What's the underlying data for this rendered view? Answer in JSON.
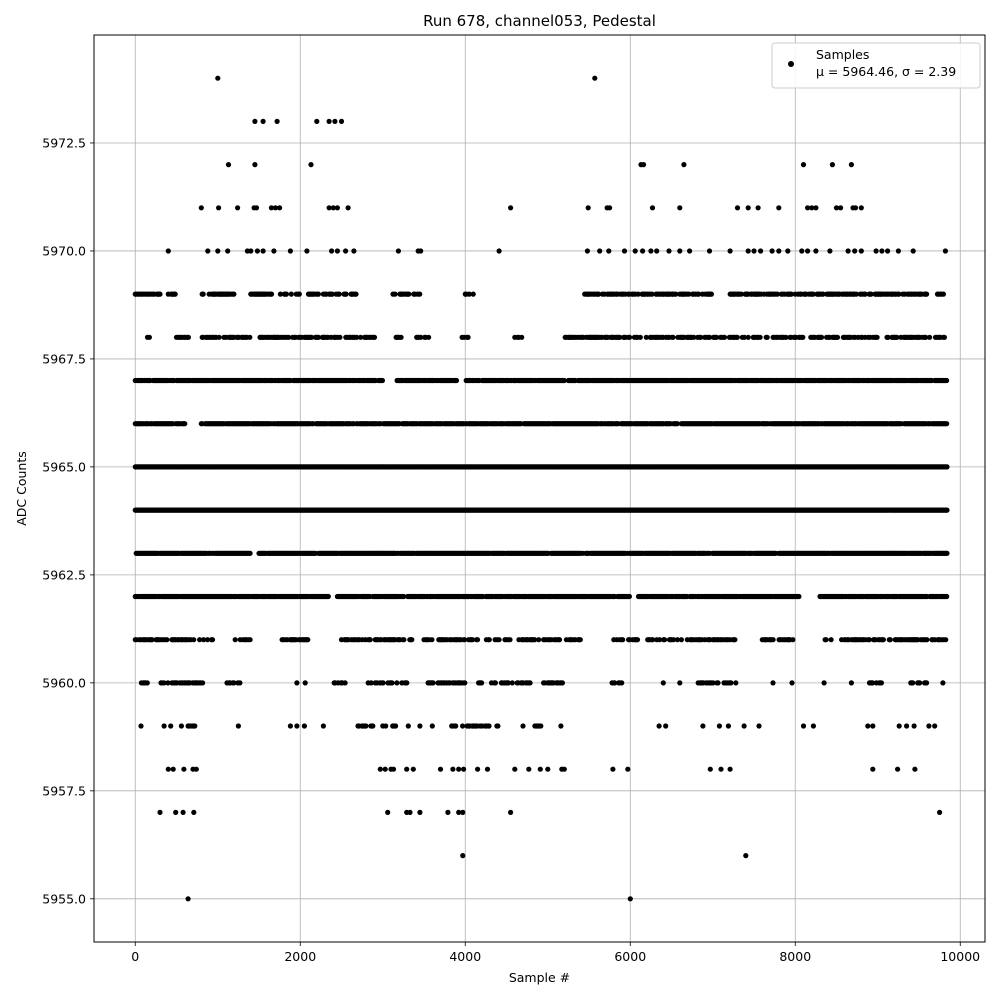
{
  "chart_data": {
    "type": "scatter",
    "title": "Run 678, channel053, Pedestal",
    "xlabel": "Sample #",
    "ylabel": "ADC Counts",
    "xlim": [
      -500,
      10300
    ],
    "ylim": [
      5954.0,
      5975.0
    ],
    "xticks": [
      0,
      2000,
      4000,
      6000,
      8000,
      10000
    ],
    "xtick_labels": [
      "0",
      "2000",
      "4000",
      "6000",
      "8000",
      "10000"
    ],
    "yticks": [
      5955.0,
      5957.5,
      5960.0,
      5962.5,
      5965.0,
      5967.5,
      5970.0,
      5972.5
    ],
    "ytick_labels": [
      "5955.0",
      "5957.5",
      "5960.0",
      "5962.5",
      "5965.0",
      "5967.5",
      "5970.0",
      "5972.5"
    ],
    "grid": true,
    "legend_position": "top-right",
    "marker_color": "#000000",
    "series": [
      {
        "name": "Samples",
        "stats_label": "μ = 5964.46, σ = 2.39",
        "points": [
          [
            1000,
            5974
          ],
          [
            5570,
            5974
          ],
          [
            1450,
            5973
          ],
          [
            1550,
            5973
          ],
          [
            1720,
            5973
          ],
          [
            2200,
            5973
          ],
          [
            2350,
            5973
          ],
          [
            2420,
            5973
          ],
          [
            2500,
            5973
          ],
          [
            1130,
            5972
          ],
          [
            1450,
            5972
          ],
          [
            2130,
            5972
          ],
          [
            6130,
            5972
          ],
          [
            6160,
            5972
          ],
          [
            6650,
            5972
          ],
          [
            8100,
            5972
          ],
          [
            8450,
            5972
          ],
          [
            8680,
            5972
          ],
          [
            800,
            5971
          ],
          [
            1010,
            5971
          ],
          [
            1240,
            5971
          ],
          [
            1440,
            5971
          ],
          [
            1470,
            5971
          ],
          [
            1650,
            5971
          ],
          [
            1700,
            5971
          ],
          [
            1750,
            5971
          ],
          [
            2350,
            5971
          ],
          [
            2400,
            5971
          ],
          [
            2450,
            5971
          ],
          [
            2580,
            5971
          ],
          [
            4550,
            5971
          ],
          [
            5490,
            5971
          ],
          [
            5720,
            5971
          ],
          [
            5750,
            5971
          ],
          [
            6270,
            5971
          ],
          [
            6600,
            5971
          ],
          [
            7300,
            5971
          ],
          [
            7430,
            5971
          ],
          [
            7550,
            5971
          ],
          [
            7800,
            5971
          ],
          [
            8150,
            5971
          ],
          [
            8200,
            5971
          ],
          [
            8250,
            5971
          ],
          [
            8500,
            5971
          ],
          [
            8550,
            5971
          ],
          [
            8700,
            5971
          ],
          [
            8730,
            5971
          ],
          [
            8800,
            5971
          ],
          [
            400,
            5970
          ],
          [
            880,
            5970
          ],
          [
            1000,
            5970
          ],
          [
            1120,
            5970
          ],
          [
            1360,
            5970
          ],
          [
            1400,
            5970
          ],
          [
            1480,
            5970
          ],
          [
            1550,
            5970
          ],
          [
            1680,
            5970
          ],
          [
            1880,
            5970
          ],
          [
            2080,
            5970
          ],
          [
            2380,
            5970
          ],
          [
            2450,
            5970
          ],
          [
            2550,
            5970
          ],
          [
            2650,
            5970
          ],
          [
            3190,
            5970
          ],
          [
            3430,
            5970
          ],
          [
            3460,
            5970
          ],
          [
            4410,
            5970
          ],
          [
            5480,
            5970
          ],
          [
            5630,
            5970
          ],
          [
            5740,
            5970
          ],
          [
            5930,
            5970
          ],
          [
            6060,
            5970
          ],
          [
            6150,
            5970
          ],
          [
            6250,
            5970
          ],
          [
            6320,
            5970
          ],
          [
            6470,
            5970
          ],
          [
            6600,
            5970
          ],
          [
            6720,
            5970
          ],
          [
            6960,
            5970
          ],
          [
            7210,
            5970
          ],
          [
            7430,
            5970
          ],
          [
            7500,
            5970
          ],
          [
            7580,
            5970
          ],
          [
            7720,
            5970
          ],
          [
            7800,
            5970
          ],
          [
            7910,
            5970
          ],
          [
            8080,
            5970
          ],
          [
            8150,
            5970
          ],
          [
            8250,
            5970
          ],
          [
            8420,
            5970
          ],
          [
            8640,
            5970
          ],
          [
            8720,
            5970
          ],
          [
            8800,
            5970
          ],
          [
            8980,
            5970
          ],
          [
            9050,
            5970
          ],
          [
            9120,
            5970
          ],
          [
            9250,
            5970
          ],
          [
            9430,
            5970
          ],
          [
            9820,
            5970
          ],
          [
            1960,
            5960
          ],
          [
            2060,
            5960
          ],
          [
            2500,
            5960
          ],
          [
            3750,
            5960
          ],
          [
            5780,
            5960
          ],
          [
            6400,
            5960
          ],
          [
            6600,
            5960
          ],
          [
            7730,
            5960
          ],
          [
            7960,
            5960
          ],
          [
            8350,
            5960
          ],
          [
            8680,
            5960
          ],
          [
            9400,
            5960
          ],
          [
            9790,
            5960
          ],
          [
            70,
            5959
          ],
          [
            350,
            5959
          ],
          [
            430,
            5959
          ],
          [
            560,
            5959
          ],
          [
            640,
            5959
          ],
          [
            1250,
            5959
          ],
          [
            1880,
            5959
          ],
          [
            1960,
            5959
          ],
          [
            2050,
            5959
          ],
          [
            2280,
            5959
          ],
          [
            3310,
            5959
          ],
          [
            3450,
            5959
          ],
          [
            3600,
            5959
          ],
          [
            4050,
            5959
          ],
          [
            5160,
            5959
          ],
          [
            6350,
            5959
          ],
          [
            6430,
            5959
          ],
          [
            6880,
            5959
          ],
          [
            7080,
            5959
          ],
          [
            7190,
            5959
          ],
          [
            7380,
            5959
          ],
          [
            7560,
            5959
          ],
          [
            8100,
            5959
          ],
          [
            8220,
            5959
          ],
          [
            8880,
            5959
          ],
          [
            8940,
            5959
          ],
          [
            9260,
            5959
          ],
          [
            9350,
            5959
          ],
          [
            9440,
            5959
          ],
          [
            9620,
            5959
          ],
          [
            9690,
            5959
          ],
          [
            400,
            5958
          ],
          [
            460,
            5958
          ],
          [
            590,
            5958
          ],
          [
            700,
            5958
          ],
          [
            740,
            5958
          ],
          [
            2970,
            5958
          ],
          [
            3030,
            5958
          ],
          [
            3100,
            5958
          ],
          [
            3130,
            5958
          ],
          [
            3290,
            5958
          ],
          [
            3370,
            5958
          ],
          [
            3700,
            5958
          ],
          [
            3850,
            5958
          ],
          [
            3920,
            5958
          ],
          [
            3980,
            5958
          ],
          [
            4150,
            5958
          ],
          [
            4270,
            5958
          ],
          [
            4600,
            5958
          ],
          [
            4770,
            5958
          ],
          [
            4910,
            5958
          ],
          [
            5000,
            5958
          ],
          [
            5170,
            5958
          ],
          [
            5200,
            5958
          ],
          [
            5790,
            5958
          ],
          [
            5970,
            5958
          ],
          [
            6970,
            5958
          ],
          [
            7100,
            5958
          ],
          [
            7210,
            5958
          ],
          [
            8940,
            5958
          ],
          [
            9240,
            5958
          ],
          [
            9450,
            5958
          ],
          [
            300,
            5957
          ],
          [
            490,
            5957
          ],
          [
            580,
            5957
          ],
          [
            710,
            5957
          ],
          [
            3060,
            5957
          ],
          [
            3290,
            5957
          ],
          [
            3330,
            5957
          ],
          [
            3450,
            5957
          ],
          [
            3790,
            5957
          ],
          [
            3920,
            5957
          ],
          [
            3970,
            5957
          ],
          [
            4550,
            5957
          ],
          [
            9750,
            5957
          ],
          [
            3970,
            5956
          ],
          [
            7400,
            5956
          ],
          [
            640,
            5955
          ],
          [
            6000,
            5955
          ]
        ],
        "bands": [
          {
            "y": 5969,
            "ranges": [
              [
                0,
                300
              ],
              [
                400,
                500
              ],
              [
                800,
                1200
              ],
              [
                1400,
                2000
              ],
              [
                2100,
                2700
              ],
              [
                3100,
                3500
              ],
              [
                4000,
                4100
              ],
              [
                5400,
                6300
              ],
              [
                6300,
                7000
              ],
              [
                7200,
                7700
              ],
              [
                7700,
                8500
              ],
              [
                8500,
                9600
              ],
              [
                9700,
                9840
              ]
            ],
            "density": 0.55
          },
          {
            "y": 5968,
            "ranges": [
              [
                100,
                250
              ],
              [
                500,
                650
              ],
              [
                800,
                1400
              ],
              [
                1500,
                2300
              ],
              [
                2300,
                2900
              ],
              [
                3150,
                3250
              ],
              [
                3400,
                3600
              ],
              [
                3950,
                4050
              ],
              [
                4600,
                4700
              ],
              [
                5200,
                6000
              ],
              [
                6050,
                7600
              ],
              [
                7600,
                9000
              ],
              [
                9100,
                9840
              ]
            ],
            "density": 0.55
          },
          {
            "y": 5967,
            "ranges": [
              [
                0,
                1100
              ],
              [
                1100,
                3000
              ],
              [
                3150,
                3900
              ],
              [
                4000,
                4600
              ],
              [
                4600,
                5200
              ],
              [
                5250,
                9840
              ]
            ],
            "density": 0.9
          },
          {
            "y": 5966,
            "ranges": [
              [
                0,
                600
              ],
              [
                800,
                9840
              ]
            ],
            "density": 0.9
          },
          {
            "y": 5965,
            "ranges": [
              [
                0,
                9840
              ]
            ],
            "density": 1.0
          },
          {
            "y": 5964,
            "ranges": [
              [
                0,
                9840
              ]
            ],
            "density": 1.0
          },
          {
            "y": 5963,
            "ranges": [
              [
                0,
                1400
              ],
              [
                1500,
                9840
              ]
            ],
            "density": 0.95
          },
          {
            "y": 5962,
            "ranges": [
              [
                0,
                2350
              ],
              [
                2450,
                6000
              ],
              [
                6100,
                8050
              ],
              [
                8300,
                9840
              ]
            ],
            "density": 0.9
          },
          {
            "y": 5961,
            "ranges": [
              [
                0,
                950
              ],
              [
                1200,
                1400
              ],
              [
                1780,
                2100
              ],
              [
                2500,
                3400
              ],
              [
                3500,
                4300
              ],
              [
                4350,
                5400
              ],
              [
                5800,
                6100
              ],
              [
                6200,
                7300
              ],
              [
                7600,
                8000
              ],
              [
                8350,
                8450
              ],
              [
                8550,
                8900
              ],
              [
                8900,
                9850
              ]
            ],
            "density": 0.5
          },
          {
            "y": 5960,
            "ranges": [
              [
                50,
                150
              ],
              [
                300,
                850
              ],
              [
                1100,
                1300
              ],
              [
                2400,
                2550
              ],
              [
                2800,
                3300
              ],
              [
                3550,
                4000
              ],
              [
                4150,
                4800
              ],
              [
                4950,
                5200
              ],
              [
                5800,
                5900
              ],
              [
                6800,
                7300
              ],
              [
                8900,
                9050
              ],
              [
                9400,
                9600
              ]
            ],
            "density": 0.55
          },
          {
            "y": 5959,
            "ranges": [
              [
                650,
                750
              ],
              [
                2700,
                2900
              ],
              [
                3000,
                3200
              ],
              [
                3800,
                4000
              ],
              [
                4000,
                4400
              ],
              [
                4700,
                4950
              ]
            ],
            "density": 0.5
          }
        ]
      }
    ]
  }
}
